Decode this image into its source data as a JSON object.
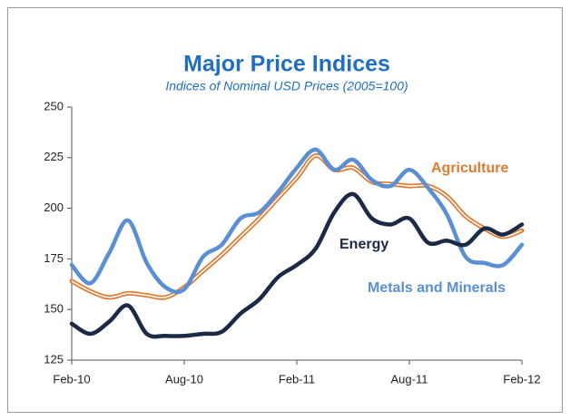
{
  "chart_data": {
    "type": "line",
    "title": "Major Price Indices",
    "subtitle": "Indices of Nominal USD Prices  (2005=100)",
    "categories": [
      "Feb-10",
      null,
      null,
      null,
      null,
      null,
      "Aug-10",
      null,
      null,
      null,
      null,
      null,
      "Feb-11",
      null,
      null,
      null,
      null,
      null,
      "Aug-11",
      null,
      null,
      null,
      null,
      null,
      "Feb-12"
    ],
    "series": [
      {
        "name": "Agriculture",
        "color": "#e07a2e",
        "double": true,
        "values": [
          164,
          159,
          156,
          158,
          157,
          156,
          161,
          169,
          177,
          186,
          195,
          205,
          215,
          226,
          219,
          220,
          213,
          212,
          211,
          211,
          206,
          196,
          190,
          186,
          189
        ]
      },
      {
        "name": "Metals and Minerals",
        "color": "#5b8fd4",
        "values": [
          172,
          163,
          178,
          194,
          173,
          161,
          160,
          176,
          182,
          195,
          198,
          208,
          220,
          229,
          219,
          224,
          214,
          211,
          219,
          210,
          197,
          176,
          173,
          172,
          182
        ]
      },
      {
        "name": "Energy",
        "color": "#1b2a45",
        "values": [
          143,
          138,
          144,
          152,
          138,
          137,
          137,
          138,
          139,
          148,
          155,
          166,
          172,
          180,
          198,
          207,
          195,
          192,
          195,
          183,
          184,
          182,
          190,
          187,
          192
        ]
      }
    ],
    "ylim": [
      125,
      250
    ],
    "yticks": [
      125,
      150,
      175,
      200,
      225,
      250
    ],
    "grid": false
  }
}
